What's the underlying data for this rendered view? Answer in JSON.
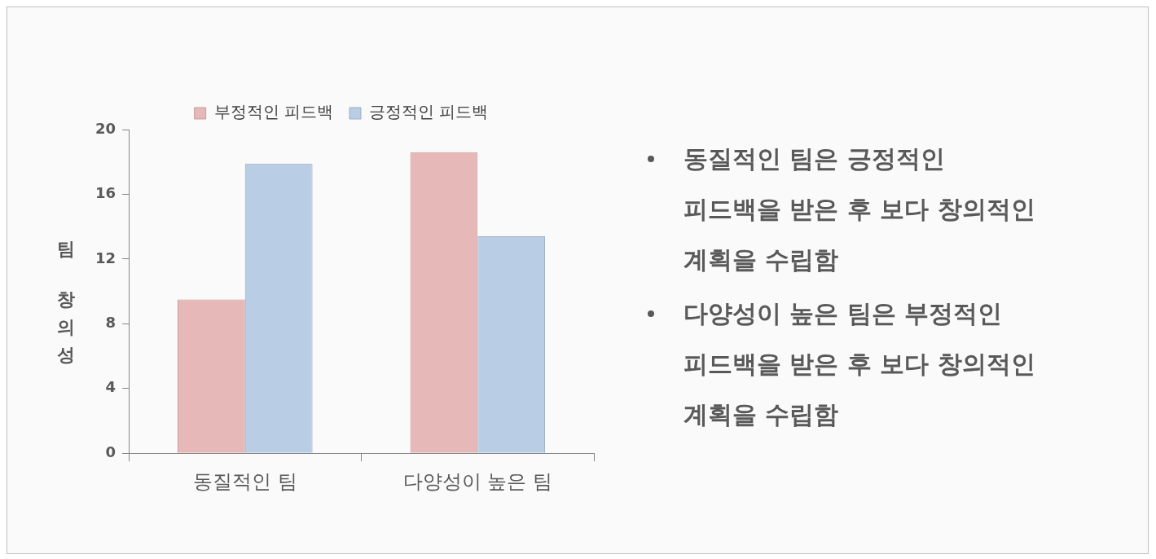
{
  "chart_data": {
    "type": "bar",
    "ylabel": "팀 창의성",
    "categories": [
      "동질적인 팀",
      "다양성이 높은 팀"
    ],
    "series": [
      {
        "name": "부정적인 피드백",
        "color": "#e6b9b8",
        "values": [
          9.5,
          18.6
        ]
      },
      {
        "name": "긍정적인 피드백",
        "color": "#b9cde5",
        "values": [
          17.9,
          13.4
        ]
      }
    ],
    "ylim": [
      0,
      20
    ],
    "yticks": [
      0,
      4,
      8,
      12,
      16,
      20
    ],
    "grid": false,
    "legend": "top",
    "annotations": [
      "동질적인 팀은 긍정적인 피드백을 받은 후 보다 창의적인 계획을 수립함",
      "다양성이 높은 팀은 부정적인 피드백을 받은 후 보다 창의적인 계획을 수립함"
    ]
  }
}
